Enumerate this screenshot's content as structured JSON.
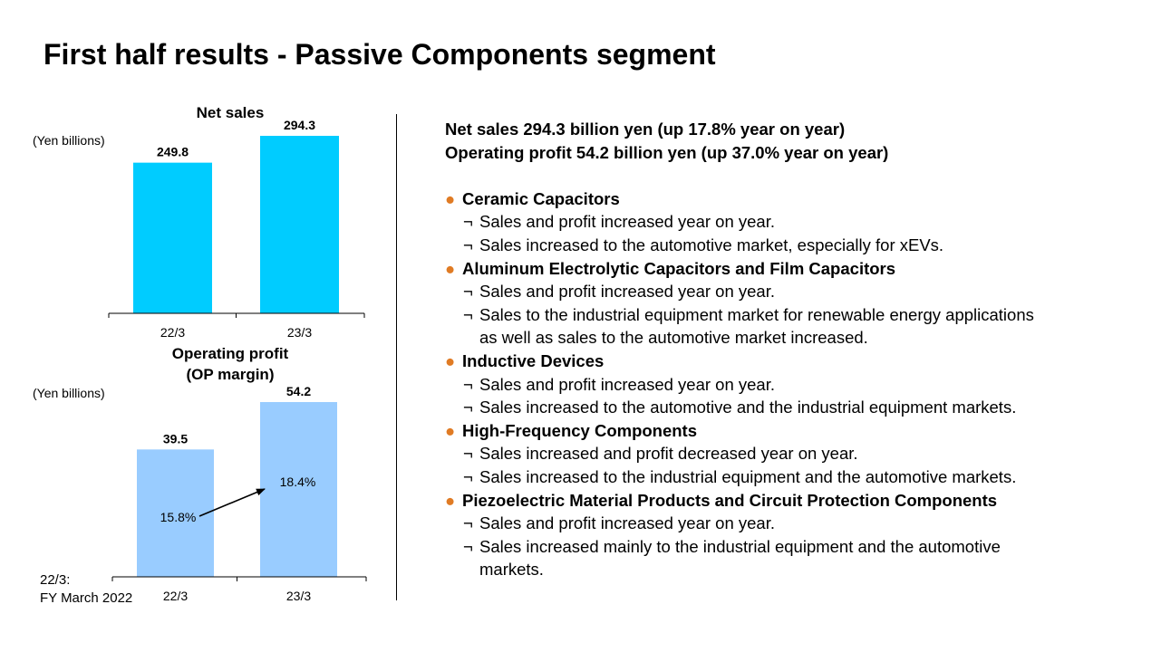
{
  "title": "First half results - Passive Components segment",
  "footnote": [
    "22/3:",
    "FY March 2022"
  ],
  "colors": {
    "sales_bar": "#00CCFF",
    "op_bar": "#99CCFF",
    "bullet": "#E07B24"
  },
  "chart_data": [
    {
      "type": "bar",
      "title": "Net sales",
      "ylabel": "(Yen billions)",
      "categories": [
        "22/3",
        "23/3"
      ],
      "values": [
        249.8,
        294.3
      ],
      "value_labels": [
        "249.8",
        "294.3"
      ],
      "ylim": [
        0,
        300
      ],
      "grid": false
    },
    {
      "type": "bar",
      "title": [
        "Operating profit",
        "(OP margin)"
      ],
      "ylabel": "(Yen billions)",
      "categories": [
        "22/3",
        "23/3"
      ],
      "values": [
        39.5,
        54.2
      ],
      "value_labels": [
        "39.5",
        "54.2"
      ],
      "margins": [
        "15.8%",
        "18.4%"
      ],
      "ylim": [
        0,
        56
      ],
      "grid": false
    }
  ],
  "summary": [
    "Net sales  294.3 billion yen (up 17.8% year on year)",
    "Operating profit  54.2 billion yen (up 37.0% year on year)"
  ],
  "bullet_glyph": "●",
  "sub_mark": "¬",
  "sections": [
    {
      "heading": "Ceramic Capacitors",
      "items": [
        [
          "Sales and profit increased year on year."
        ],
        [
          "Sales increased to the automotive market, especially for xEVs."
        ]
      ]
    },
    {
      "heading": "Aluminum Electrolytic Capacitors and Film Capacitors",
      "items": [
        [
          "Sales and profit increased year on year."
        ],
        [
          "Sales to the industrial equipment market for renewable energy applications",
          "as well as sales to the automotive market increased."
        ]
      ]
    },
    {
      "heading": "Inductive Devices",
      "items": [
        [
          "Sales and profit increased year on year."
        ],
        [
          "Sales increased to the automotive and the industrial equipment markets."
        ]
      ]
    },
    {
      "heading": "High-Frequency Components",
      "items": [
        [
          "Sales increased and profit decreased year on year."
        ],
        [
          "Sales increased to the industrial equipment and the automotive markets."
        ]
      ]
    },
    {
      "heading": "Piezoelectric Material Products and Circuit Protection Components",
      "items": [
        [
          "Sales and profit increased year on year."
        ],
        [
          "Sales increased mainly to the industrial equipment and the automotive",
          "markets."
        ]
      ]
    }
  ]
}
